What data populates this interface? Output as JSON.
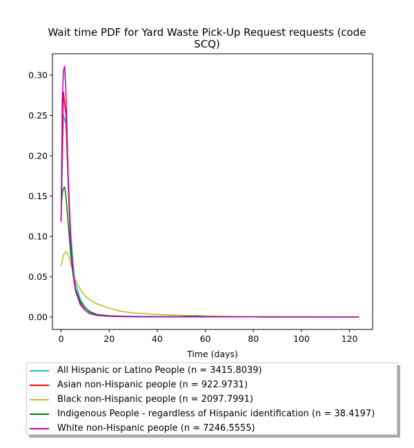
{
  "chart_data": {
    "type": "line",
    "title": "Wait time PDF for Yard Waste Pick-Up Request  requests (code SCQ)",
    "title_lines": [
      "Wait time PDF for Yard Waste Pick-Up Request  requests (code",
      "SCQ)"
    ],
    "xlabel": "Time (days)",
    "ylabel": "",
    "xlim": [
      -3.6,
      129.6
    ],
    "ylim": [
      -0.0155,
      0.3265
    ],
    "xticks": [
      0,
      20,
      40,
      60,
      80,
      100,
      120
    ],
    "yticks": [
      0.0,
      0.05,
      0.1,
      0.15,
      0.2,
      0.25,
      0.3
    ],
    "ytick_labels": [
      "0.00",
      "0.05",
      "0.10",
      "0.15",
      "0.20",
      "0.25",
      "0.30"
    ],
    "grid": false,
    "legend_position": "below",
    "series": [
      {
        "name": "All Hispanic or Latino People (n = 3415.8039)",
        "color": "#17becf",
        "x": [
          0,
          1,
          2,
          3,
          4,
          5,
          6,
          8,
          10,
          12,
          15,
          20,
          25,
          30,
          40,
          50,
          60,
          80,
          100,
          124
        ],
        "y": [
          0.12,
          0.25,
          0.24,
          0.17,
          0.105,
          0.065,
          0.042,
          0.022,
          0.012,
          0.007,
          0.003,
          0.0015,
          0.001,
          0.0008,
          0.0005,
          0.0003,
          0.0002,
          0.0001,
          0.0001,
          0.0
        ]
      },
      {
        "name": "Asian non-Hispanic people (n = 922.9731)",
        "color": "#ff0000",
        "x": [
          0,
          0.5,
          1,
          2,
          3,
          4,
          5,
          6,
          8,
          10,
          12,
          15,
          20,
          25,
          30,
          40,
          50,
          60,
          80,
          100,
          124
        ],
        "y": [
          0.12,
          0.22,
          0.279,
          0.25,
          0.16,
          0.09,
          0.052,
          0.032,
          0.016,
          0.008,
          0.004,
          0.002,
          0.0008,
          0.0005,
          0.0004,
          0.0003,
          0.0002,
          0.0001,
          0.0001,
          0.0,
          0.0
        ]
      },
      {
        "name": "Black non-Hispanic people (n = 2097.7991)",
        "color": "#bcbd22",
        "x": [
          0,
          1,
          2,
          3,
          4,
          5,
          6,
          8,
          10,
          12,
          15,
          18,
          20,
          25,
          30,
          35,
          40,
          50,
          55,
          60,
          70,
          80,
          100,
          124
        ],
        "y": [
          0.063,
          0.077,
          0.081,
          0.077,
          0.066,
          0.055,
          0.046,
          0.034,
          0.026,
          0.021,
          0.016,
          0.013,
          0.011,
          0.007,
          0.005,
          0.0042,
          0.003,
          0.002,
          0.0015,
          0.0012,
          0.0007,
          0.0005,
          0.0003,
          0.0
        ]
      },
      {
        "name": "Indigenous People - regardless of Hispanic identification (n = 38.4197)",
        "color": "#008000",
        "x": [
          0,
          0.5,
          1,
          1.5,
          2,
          3,
          4,
          5,
          6,
          8,
          10,
          12,
          15,
          20,
          25,
          30,
          40,
          50,
          56,
          60,
          70,
          80,
          100,
          124
        ],
        "y": [
          0.137,
          0.153,
          0.16,
          0.161,
          0.15,
          0.115,
          0.078,
          0.052,
          0.035,
          0.019,
          0.011,
          0.006,
          0.003,
          0.0015,
          0.0008,
          0.0005,
          0.0003,
          0.0005,
          0.0012,
          0.0006,
          0.0002,
          0.0001,
          0.0,
          0.0
        ]
      },
      {
        "name": "White non-Hispanic people (n = 7246.5555)",
        "color": "#c000c0",
        "x": [
          0,
          0.5,
          1,
          1.5,
          2,
          3,
          4,
          5,
          6,
          8,
          10,
          12,
          15,
          20,
          25,
          30,
          40,
          50,
          60,
          80,
          100,
          124
        ],
        "y": [
          0.118,
          0.27,
          0.306,
          0.311,
          0.28,
          0.17,
          0.095,
          0.055,
          0.033,
          0.015,
          0.008,
          0.004,
          0.002,
          0.001,
          0.0006,
          0.0004,
          0.0003,
          0.0002,
          0.0001,
          0.0001,
          0.0,
          0.0
        ]
      }
    ]
  }
}
